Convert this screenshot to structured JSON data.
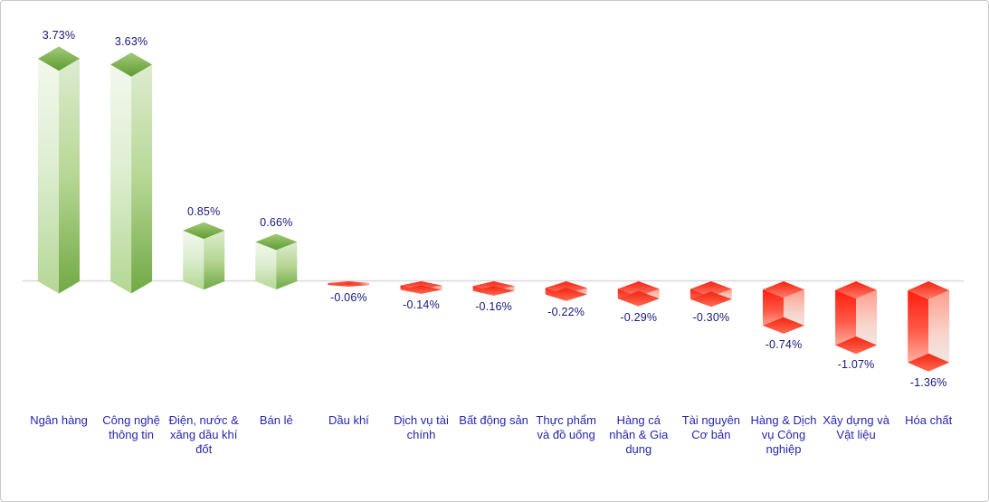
{
  "chart_data": {
    "type": "bar",
    "subtype": "3d-column",
    "title": "",
    "xlabel": "",
    "ylabel": "",
    "unit": "%",
    "grid": false,
    "legend": false,
    "baseline": 0,
    "ylim": [
      -1.5,
      4.0
    ],
    "categories": [
      "Ngân hàng",
      "Công nghệ thông tin",
      "Điện, nước & xăng dầu khí đốt",
      "Bán lẻ",
      "Dầu khí",
      "Dịch vụ tài chính",
      "Bất động sản",
      "Thực phẩm và đồ uống",
      "Hàng cá nhân & Gia dụng",
      "Tài nguyên Cơ bản",
      "Hàng & Dịch vụ Công nghiệp",
      "Xây dựng và Vật liệu",
      "Hóa chất"
    ],
    "categories_wrapped": [
      "Ngân hàng",
      "Công nghệ\nthông tin",
      "Điện, nước &\nxăng dầu khí\nđốt",
      "Bán lẻ",
      "Dầu khí",
      "Dịch vụ tài\nchính",
      "Bất động sản",
      "Thực phẩm\nvà đồ uống",
      "Hàng cá\nnhân & Gia\ndụng",
      "Tài nguyên\nCơ bản",
      "Hàng & Dịch\nvụ Công\nnghiệp",
      "Xây dựng và\nVật liệu",
      "Hóa chất"
    ],
    "values": [
      3.73,
      3.63,
      0.85,
      0.66,
      -0.06,
      -0.14,
      -0.16,
      -0.22,
      -0.29,
      -0.3,
      -0.74,
      -1.07,
      -1.36
    ],
    "value_labels": [
      "3.73%",
      "3.63%",
      "0.85%",
      "0.66%",
      "-0.06%",
      "-0.14%",
      "-0.16%",
      "-0.22%",
      "-0.29%",
      "-0.30%",
      "-0.74%",
      "-1.07%",
      "-1.36%"
    ]
  },
  "colors": {
    "positive": "#6faa43",
    "positive_light": "#eef6e7",
    "negative": "#ff1d0e",
    "negative_light": "#efeceb",
    "value_label": "#17177c",
    "category_label": "#2626ae",
    "axis_line": "#d9d9d9"
  }
}
